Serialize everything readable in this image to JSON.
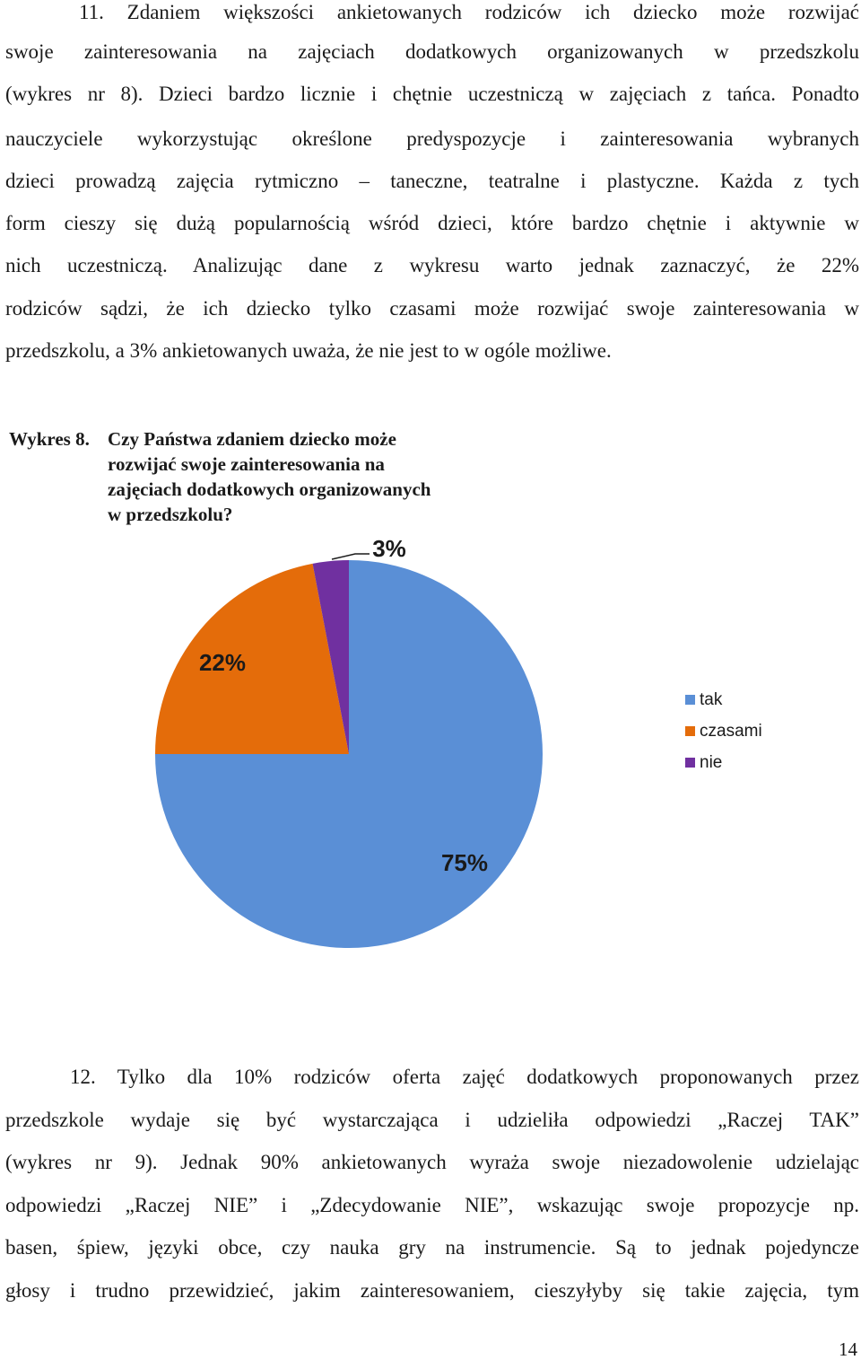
{
  "paragraph1": {
    "lines": [
      "11. Zdaniem większości ankietowanych rodziców ich dziecko może rozwijać",
      "swoje zainteresowania na zajęciach dodatkowych organizowanych w przedszkolu",
      "(wykres nr 8). Dzieci bardzo licznie i chętnie uczestniczą w zajęciach z tańca. Ponadto",
      "nauczyciele wykorzystując określone predyspozycje i zainteresowania wybranych",
      "dzieci prowadzą zajęcia rytmiczno – taneczne, teatralne i plastyczne. Każda z tych",
      "form cieszy się dużą popularnością wśród dzieci, które bardzo chętnie i aktywnie w",
      "nich uczestniczą. Analizując dane z wykresu warto jednak zaznaczyć, że 22%",
      "rodziców sądzi, że ich dziecko tylko czasami może rozwijać swoje zainteresowania w",
      "przedszkolu, a 3% ankietowanych uważa, że nie jest to w ogóle możliwe."
    ]
  },
  "figure": {
    "label": "Wykres 8.",
    "title_lines": [
      "Czy Państwa zdaniem dziecko może",
      "rozwijać swoje zainteresowania na",
      "zajęciach dodatkowych organizowanych",
      "w przedszkolu?"
    ]
  },
  "chart_data": {
    "type": "pie",
    "title": "Czy Państwa zdaniem dziecko może rozwijać swoje zainteresowania na zajęciach dodatkowych organizowanych w przedszkolu?",
    "categories": [
      "tak",
      "czasami",
      "nie"
    ],
    "values": [
      75,
      22,
      3
    ],
    "data_labels": [
      "75%",
      "22%",
      "3%"
    ],
    "colors": [
      "#5a8fd6",
      "#e46c0a",
      "#7030a0"
    ],
    "legend_position": "right",
    "start_angle": "12 o'clock",
    "direction": "clockwise"
  },
  "paragraph2": {
    "lines": [
      "12. Tylko dla 10% rodziców oferta zajęć dodatkowych proponowanych przez",
      "przedszkole wydaje się być wystarczająca i udzieliła odpowiedzi „Raczej TAK”",
      "(wykres nr 9). Jednak 90% ankietowanych wyraża swoje niezadowolenie udzielając",
      "odpowiedzi „Raczej NIE” i „Zdecydowanie NIE”, wskazując swoje propozycje np.",
      "basen, śpiew, języki obce, czy nauka gry na instrumencie. Są to jednak pojedyncze",
      "głosy i trudno przewidzieć, jakim zainteresowaniem, cieszyłyby się takie zajęcia, tym"
    ]
  },
  "page_number": "14"
}
